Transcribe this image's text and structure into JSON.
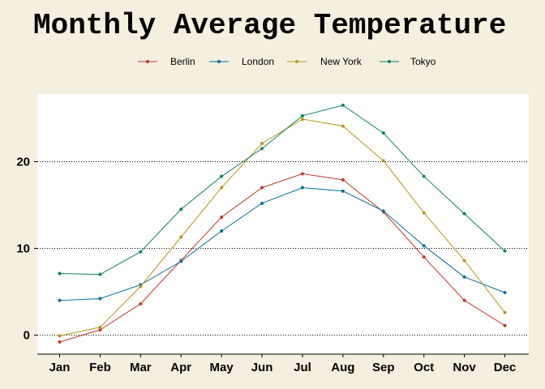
{
  "chart_data": {
    "type": "line",
    "title": "Monthly Average Temperature",
    "xlabel": "",
    "ylabel": "",
    "categories": [
      "Jan",
      "Feb",
      "Mar",
      "Apr",
      "May",
      "Jun",
      "Jul",
      "Aug",
      "Sep",
      "Oct",
      "Nov",
      "Dec"
    ],
    "ylim": [
      -2.2,
      27.8
    ],
    "yticks": [
      0,
      10,
      20
    ],
    "grid": "horizontal-dotted",
    "legend_position": "top",
    "series": [
      {
        "name": "Berlin",
        "color": "#c0392b",
        "values": [
          -0.8,
          0.6,
          3.6,
          8.6,
          13.6,
          17.0,
          18.6,
          17.9,
          14.2,
          9.0,
          4.0,
          1.1
        ]
      },
      {
        "name": "London",
        "color": "#0b6e99",
        "values": [
          4.0,
          4.2,
          5.8,
          8.5,
          12.0,
          15.2,
          17.0,
          16.6,
          14.3,
          10.3,
          6.7,
          4.9
        ]
      },
      {
        "name": "New York",
        "color": "#b5961e",
        "values": [
          -0.1,
          0.9,
          5.6,
          11.3,
          17.0,
          22.1,
          24.9,
          24.1,
          20.1,
          14.1,
          8.6,
          2.6
        ]
      },
      {
        "name": "Tokyo",
        "color": "#118062",
        "values": [
          7.1,
          7.0,
          9.6,
          14.5,
          18.3,
          21.5,
          25.3,
          26.5,
          23.3,
          18.3,
          14.0,
          9.7
        ]
      }
    ]
  }
}
